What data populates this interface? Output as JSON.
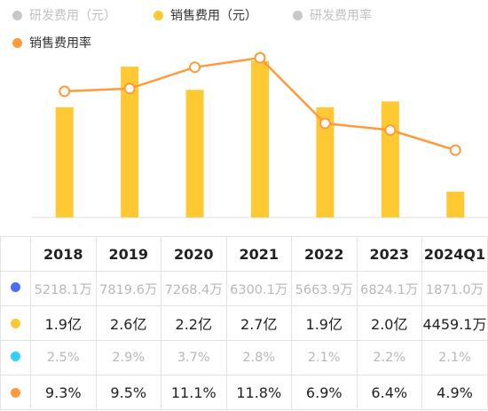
{
  "legend": [
    {
      "label": "研发费用（元）",
      "color": "#c8c8c8",
      "active": false
    },
    {
      "label": "销售费用（元）",
      "color": "#ffc933",
      "active": true
    },
    {
      "label": "研发费用率",
      "color": "#c8c8c8",
      "active": false
    },
    {
      "label": "销售费用率",
      "color": "#ff9a3c",
      "active": true
    }
  ],
  "chart_data": {
    "type": "bar",
    "categories": [
      "2018",
      "2019",
      "2020",
      "2021",
      "2022",
      "2023",
      "2024Q1"
    ],
    "series": [
      {
        "name": "销售费用（元）",
        "type": "bar",
        "color": "#ffc933",
        "values": [
          1.9,
          2.6,
          2.2,
          2.7,
          1.9,
          2.0,
          0.44591
        ],
        "unit": "亿"
      },
      {
        "name": "销售费用率",
        "type": "line",
        "color": "#ff9a3c",
        "values": [
          9.3,
          9.5,
          11.1,
          11.8,
          6.9,
          6.4,
          4.9
        ],
        "unit": "%"
      }
    ],
    "title": "",
    "xlabel": "",
    "ylabel": "",
    "grid": false,
    "legend_position": "top-left"
  },
  "table": {
    "headers": [
      "",
      "2018",
      "2019",
      "2020",
      "2021",
      "2022",
      "2023",
      "2024Q1"
    ],
    "rows": [
      {
        "color": "#4a6cf7",
        "muted": true,
        "values": [
          "5218.1万",
          "7819.6万",
          "7268.4万",
          "6300.1万",
          "5663.9万",
          "6824.1万",
          "1871.0万"
        ]
      },
      {
        "color": "#ffc933",
        "muted": false,
        "values": [
          "1.9亿",
          "2.6亿",
          "2.2亿",
          "2.7亿",
          "1.9亿",
          "2.0亿",
          "4459.1万"
        ]
      },
      {
        "color": "#2ed3f5",
        "muted": true,
        "values": [
          "2.5%",
          "2.9%",
          "3.7%",
          "2.8%",
          "2.1%",
          "2.2%",
          "2.1%"
        ]
      },
      {
        "color": "#ff9a3c",
        "muted": false,
        "values": [
          "9.3%",
          "9.5%",
          "11.1%",
          "11.8%",
          "6.9%",
          "6.4%",
          "4.9%"
        ]
      }
    ]
  }
}
